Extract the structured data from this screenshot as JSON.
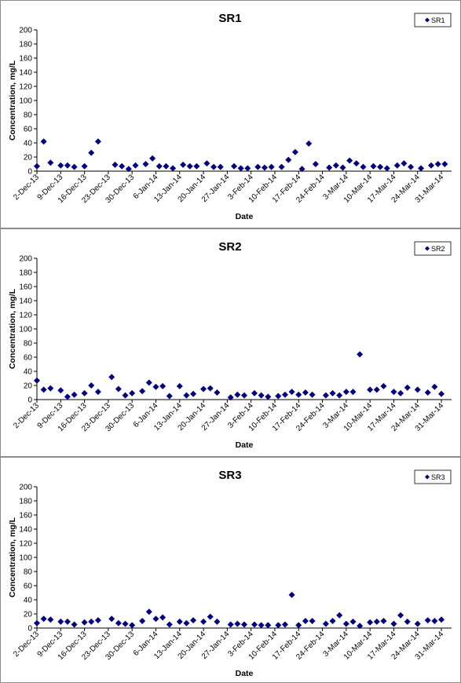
{
  "chart_data": [
    {
      "type": "scatter",
      "title": "SR1",
      "xlabel": "Date",
      "ylabel": "Concentration, mg/L",
      "ylim": [
        0,
        200
      ],
      "yticks": [
        0,
        20,
        40,
        60,
        80,
        100,
        120,
        140,
        160,
        180,
        200
      ],
      "xlim": [
        "2-Dec-13",
        "3-Apr-14"
      ],
      "xticks": [
        "2-Dec-13",
        "9-Dec-13",
        "16-Dec-13",
        "23-Dec-13",
        "30-Dec-13",
        "6-Jan-14",
        "13-Jan-14",
        "20-Jan-14",
        "27-Jan-14",
        "3-Feb-14",
        "10-Feb-14",
        "17-Feb-14",
        "24-Feb-14",
        "3-Mar-14",
        "10-Mar-14",
        "17-Mar-14",
        "24-Mar-14",
        "31-Mar-14"
      ],
      "grid": false,
      "legend_position": "top-right",
      "marker_color": "#000080",
      "series": [
        {
          "name": "SR1",
          "points": [
            [
              "2-Dec-13",
              7
            ],
            [
              "4-Dec-13",
              42
            ],
            [
              "6-Dec-13",
              12
            ],
            [
              "9-Dec-13",
              8
            ],
            [
              "11-Dec-13",
              8
            ],
            [
              "13-Dec-13",
              6
            ],
            [
              "16-Dec-13",
              7
            ],
            [
              "18-Dec-13",
              26
            ],
            [
              "20-Dec-13",
              42
            ],
            [
              "25-Dec-13",
              9
            ],
            [
              "27-Dec-13",
              7
            ],
            [
              "29-Dec-13",
              3
            ],
            [
              "31-Dec-13",
              8
            ],
            [
              "3-Jan-14",
              10
            ],
            [
              "5-Jan-14",
              18
            ],
            [
              "7-Jan-14",
              7
            ],
            [
              "9-Jan-14",
              7
            ],
            [
              "11-Jan-14",
              4
            ],
            [
              "14-Jan-14",
              9
            ],
            [
              "16-Jan-14",
              7
            ],
            [
              "18-Jan-14",
              7
            ],
            [
              "21-Jan-14",
              11
            ],
            [
              "23-Jan-14",
              6
            ],
            [
              "25-Jan-14",
              6
            ],
            [
              "29-Jan-14",
              7
            ],
            [
              "31-Jan-14",
              4
            ],
            [
              "2-Feb-14",
              4
            ],
            [
              "5-Feb-14",
              6
            ],
            [
              "7-Feb-14",
              5
            ],
            [
              "9-Feb-14",
              6
            ],
            [
              "12-Feb-14",
              6
            ],
            [
              "14-Feb-14",
              16
            ],
            [
              "16-Feb-14",
              27
            ],
            [
              "18-Feb-14",
              3
            ],
            [
              "20-Feb-14",
              39
            ],
            [
              "22-Feb-14",
              10
            ],
            [
              "26-Feb-14",
              5
            ],
            [
              "28-Feb-14",
              8
            ],
            [
              "2-Mar-14",
              5
            ],
            [
              "4-Mar-14",
              15
            ],
            [
              "6-Mar-14",
              11
            ],
            [
              "8-Mar-14",
              6
            ],
            [
              "11-Mar-14",
              7
            ],
            [
              "13-Mar-14",
              6
            ],
            [
              "15-Mar-14",
              4
            ],
            [
              "18-Mar-14",
              8
            ],
            [
              "20-Mar-14",
              11
            ],
            [
              "22-Mar-14",
              6
            ],
            [
              "25-Mar-14",
              4
            ],
            [
              "28-Mar-14",
              8
            ],
            [
              "30-Mar-14",
              10
            ],
            [
              "1-Apr-14",
              10
            ]
          ]
        }
      ]
    },
    {
      "type": "scatter",
      "title": "SR2",
      "xlabel": "Date",
      "ylabel": "Concentration, mg/L",
      "ylim": [
        0,
        200
      ],
      "yticks": [
        0,
        20,
        40,
        60,
        80,
        100,
        120,
        140,
        160,
        180,
        200
      ],
      "xlim": [
        "2-Dec-13",
        "3-Apr-14"
      ],
      "xticks": [
        "2-Dec-13",
        "9-Dec-13",
        "16-Dec-13",
        "23-Dec-13",
        "30-Dec-13",
        "6-Jan-14",
        "13-Jan-14",
        "20-Jan-14",
        "27-Jan-14",
        "3-Feb-14",
        "10-Feb-14",
        "17-Feb-14",
        "24-Feb-14",
        "3-Mar-14",
        "10-Mar-14",
        "17-Mar-14",
        "24-Mar-14",
        "31-Mar-14"
      ],
      "grid": false,
      "legend_position": "top-right",
      "marker_color": "#000080",
      "series": [
        {
          "name": "SR2",
          "points": [
            [
              "2-Dec-13",
              27
            ],
            [
              "4-Dec-13",
              14
            ],
            [
              "6-Dec-13",
              16
            ],
            [
              "9-Dec-13",
              13
            ],
            [
              "11-Dec-13",
              4
            ],
            [
              "13-Dec-13",
              7
            ],
            [
              "16-Dec-13",
              9
            ],
            [
              "18-Dec-13",
              20
            ],
            [
              "20-Dec-13",
              11
            ],
            [
              "24-Dec-13",
              32
            ],
            [
              "26-Dec-13",
              15
            ],
            [
              "28-Dec-13",
              6
            ],
            [
              "30-Dec-13",
              9
            ],
            [
              "2-Jan-14",
              12
            ],
            [
              "4-Jan-14",
              24
            ],
            [
              "6-Jan-14",
              18
            ],
            [
              "8-Jan-14",
              19
            ],
            [
              "10-Jan-14",
              5
            ],
            [
              "13-Jan-14",
              19
            ],
            [
              "15-Jan-14",
              6
            ],
            [
              "17-Jan-14",
              8
            ],
            [
              "20-Jan-14",
              15
            ],
            [
              "22-Jan-14",
              16
            ],
            [
              "24-Jan-14",
              10
            ],
            [
              "28-Jan-14",
              3
            ],
            [
              "30-Jan-14",
              7
            ],
            [
              "1-Feb-14",
              6
            ],
            [
              "4-Feb-14",
              9
            ],
            [
              "6-Feb-14",
              6
            ],
            [
              "8-Feb-14",
              4
            ],
            [
              "11-Feb-14",
              5
            ],
            [
              "13-Feb-14",
              7
            ],
            [
              "15-Feb-14",
              11
            ],
            [
              "17-Feb-14",
              7
            ],
            [
              "19-Feb-14",
              10
            ],
            [
              "21-Feb-14",
              7
            ],
            [
              "25-Feb-14",
              6
            ],
            [
              "27-Feb-14",
              9
            ],
            [
              "1-Mar-14",
              6
            ],
            [
              "3-Mar-14",
              11
            ],
            [
              "5-Mar-14",
              11
            ],
            [
              "7-Mar-14",
              64
            ],
            [
              "10-Mar-14",
              14
            ],
            [
              "12-Mar-14",
              14
            ],
            [
              "14-Mar-14",
              19
            ],
            [
              "17-Mar-14",
              11
            ],
            [
              "19-Mar-14",
              9
            ],
            [
              "21-Mar-14",
              17
            ],
            [
              "24-Mar-14",
              14
            ],
            [
              "27-Mar-14",
              10
            ],
            [
              "29-Mar-14",
              18
            ],
            [
              "31-Mar-14",
              8
            ]
          ]
        }
      ]
    },
    {
      "type": "scatter",
      "title": "SR3",
      "xlabel": "Date",
      "ylabel": "Concentration, mg/L",
      "ylim": [
        0,
        200
      ],
      "yticks": [
        0,
        20,
        40,
        60,
        80,
        100,
        120,
        140,
        160,
        180,
        200
      ],
      "xlim": [
        "2-Dec-13",
        "3-Apr-14"
      ],
      "xticks": [
        "2-Dec-13",
        "9-Dec-13",
        "16-Dec-13",
        "23-Dec-13",
        "30-Dec-13",
        "6-Jan-14",
        "13-Jan-14",
        "20-Jan-14",
        "27-Jan-14",
        "3-Feb-14",
        "10-Feb-14",
        "17-Feb-14",
        "24-Feb-14",
        "3-Mar-14",
        "10-Mar-14",
        "17-Mar-14",
        "24-Mar-14",
        "31-Mar-14"
      ],
      "grid": false,
      "legend_position": "top-right",
      "marker_color": "#000080",
      "series": [
        {
          "name": "SR3",
          "points": [
            [
              "2-Dec-13",
              7
            ],
            [
              "4-Dec-13",
              13
            ],
            [
              "6-Dec-13",
              12
            ],
            [
              "9-Dec-13",
              9
            ],
            [
              "11-Dec-13",
              9
            ],
            [
              "13-Dec-13",
              5
            ],
            [
              "16-Dec-13",
              8
            ],
            [
              "18-Dec-13",
              9
            ],
            [
              "20-Dec-13",
              11
            ],
            [
              "24-Dec-13",
              13
            ],
            [
              "26-Dec-13",
              7
            ],
            [
              "28-Dec-13",
              6
            ],
            [
              "30-Dec-13",
              4
            ],
            [
              "2-Jan-14",
              10
            ],
            [
              "4-Jan-14",
              23
            ],
            [
              "6-Jan-14",
              13
            ],
            [
              "8-Jan-14",
              15
            ],
            [
              "10-Jan-14",
              5
            ],
            [
              "13-Jan-14",
              9
            ],
            [
              "15-Jan-14",
              7
            ],
            [
              "17-Jan-14",
              11
            ],
            [
              "20-Jan-14",
              9
            ],
            [
              "22-Jan-14",
              16
            ],
            [
              "24-Jan-14",
              9
            ],
            [
              "28-Jan-14",
              5
            ],
            [
              "30-Jan-14",
              6
            ],
            [
              "1-Feb-14",
              5
            ],
            [
              "4-Feb-14",
              5
            ],
            [
              "6-Feb-14",
              4
            ],
            [
              "8-Feb-14",
              4
            ],
            [
              "11-Feb-14",
              4
            ],
            [
              "13-Feb-14",
              5
            ],
            [
              "15-Feb-14",
              47
            ],
            [
              "17-Feb-14",
              4
            ],
            [
              "19-Feb-14",
              10
            ],
            [
              "21-Feb-14",
              10
            ],
            [
              "25-Feb-14",
              6
            ],
            [
              "27-Feb-14",
              10
            ],
            [
              "1-Mar-14",
              18
            ],
            [
              "3-Mar-14",
              6
            ],
            [
              "5-Mar-14",
              9
            ],
            [
              "7-Mar-14",
              3
            ],
            [
              "10-Mar-14",
              8
            ],
            [
              "12-Mar-14",
              9
            ],
            [
              "14-Mar-14",
              10
            ],
            [
              "17-Mar-14",
              6
            ],
            [
              "19-Mar-14",
              18
            ],
            [
              "21-Mar-14",
              9
            ],
            [
              "24-Mar-14",
              6
            ],
            [
              "27-Mar-14",
              11
            ],
            [
              "29-Mar-14",
              10
            ],
            [
              "31-Mar-14",
              12
            ]
          ]
        }
      ]
    }
  ]
}
